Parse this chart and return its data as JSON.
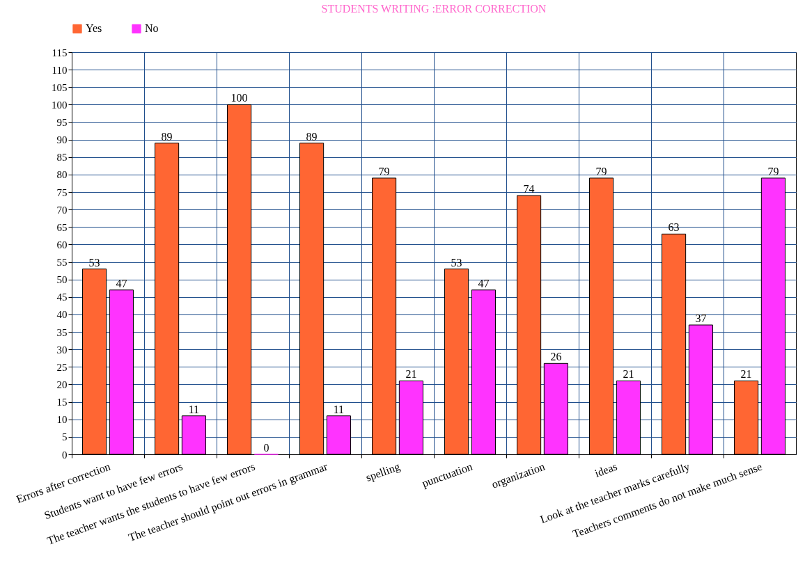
{
  "chart_data": {
    "type": "bar",
    "title": "STUDENTS WRITING   :ERROR CORRECTION",
    "categories": [
      "Errors after correction",
      "Students want to have few errors",
      "The teacher wants the students to have few errors",
      "The teacher should point out errors in grammar",
      "spelling",
      "punctuation",
      "organization",
      "ideas",
      "Look at the teacher marks carefully",
      "Teachers comments do not make much sense"
    ],
    "series": [
      {
        "name": "Yes",
        "color": "#ff6633",
        "values": [
          53,
          89,
          100,
          89,
          79,
          53,
          74,
          79,
          63,
          21
        ]
      },
      {
        "name": "No",
        "color": "#ff33ff",
        "values": [
          47,
          11,
          0,
          11,
          21,
          47,
          26,
          21,
          37,
          79
        ]
      }
    ],
    "ylim": [
      0,
      115
    ],
    "yticks": [
      0,
      5,
      10,
      15,
      20,
      25,
      30,
      35,
      40,
      45,
      50,
      55,
      60,
      65,
      70,
      75,
      80,
      85,
      90,
      95,
      100,
      105,
      110,
      115
    ],
    "grid": true,
    "legend": "top left",
    "data_labels": true
  }
}
